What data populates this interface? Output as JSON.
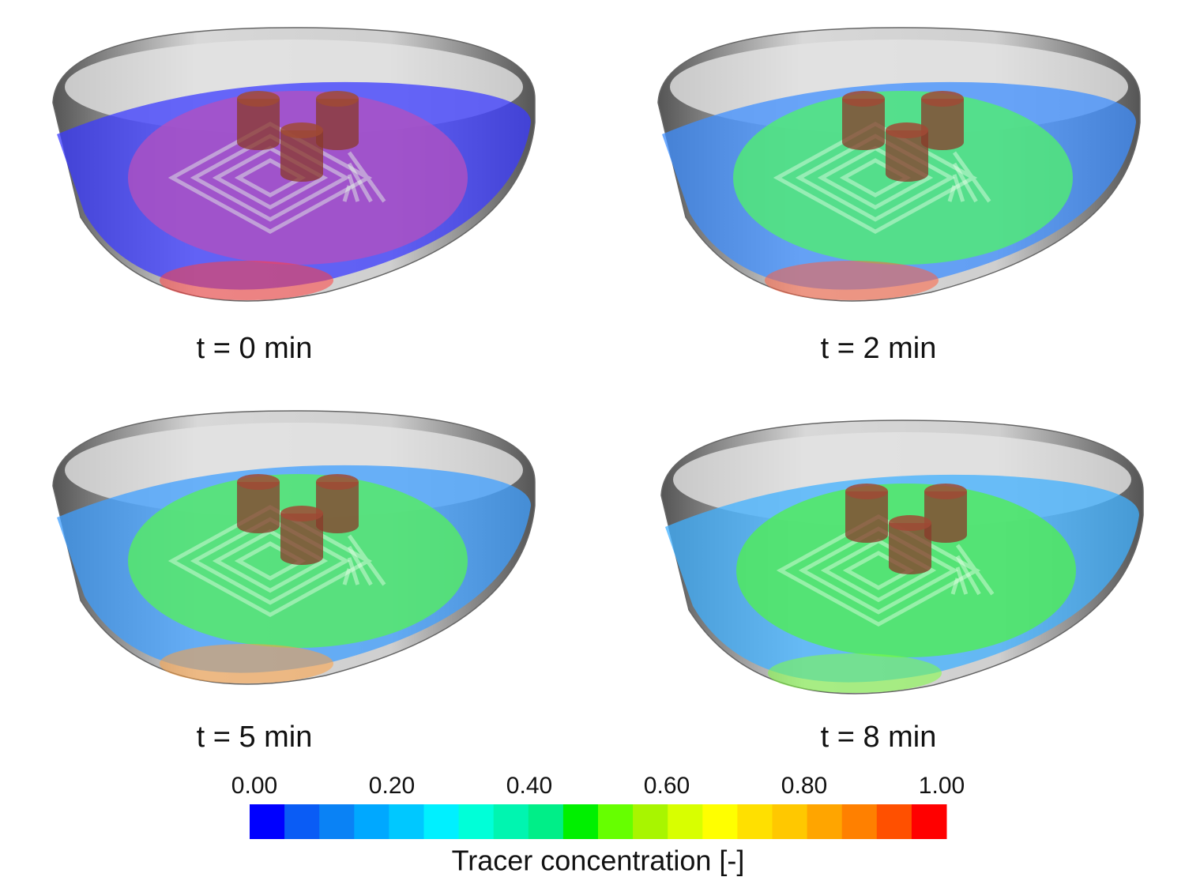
{
  "panels": [
    {
      "caption": "t = 0 min"
    },
    {
      "caption": "t = 2 min"
    },
    {
      "caption": "t = 5 min"
    },
    {
      "caption": "t = 8 min"
    }
  ],
  "colorbar": {
    "title": "Tracer concentration [-]",
    "range": [
      0,
      1
    ],
    "ticks": [
      {
        "value": 0,
        "label": "0.00"
      },
      {
        "value": 0.2,
        "label": "0.20"
      },
      {
        "value": 0.4,
        "label": "0.40"
      },
      {
        "value": 0.6,
        "label": "0.60"
      },
      {
        "value": 0.8,
        "label": "0.80"
      },
      {
        "value": 1,
        "label": "1.00"
      }
    ],
    "colors": [
      "#0000ff",
      "#0a5cf5",
      "#0a82f5",
      "#00a8ff",
      "#00c8ff",
      "#00f0ff",
      "#00ffd8",
      "#00f5b0",
      "#00ee88",
      "#00f000",
      "#66ff00",
      "#a8f500",
      "#d8ff00",
      "#ffff00",
      "#ffe000",
      "#ffc800",
      "#ffa500",
      "#ff8000",
      "#ff5000",
      "#ff0000"
    ]
  }
}
